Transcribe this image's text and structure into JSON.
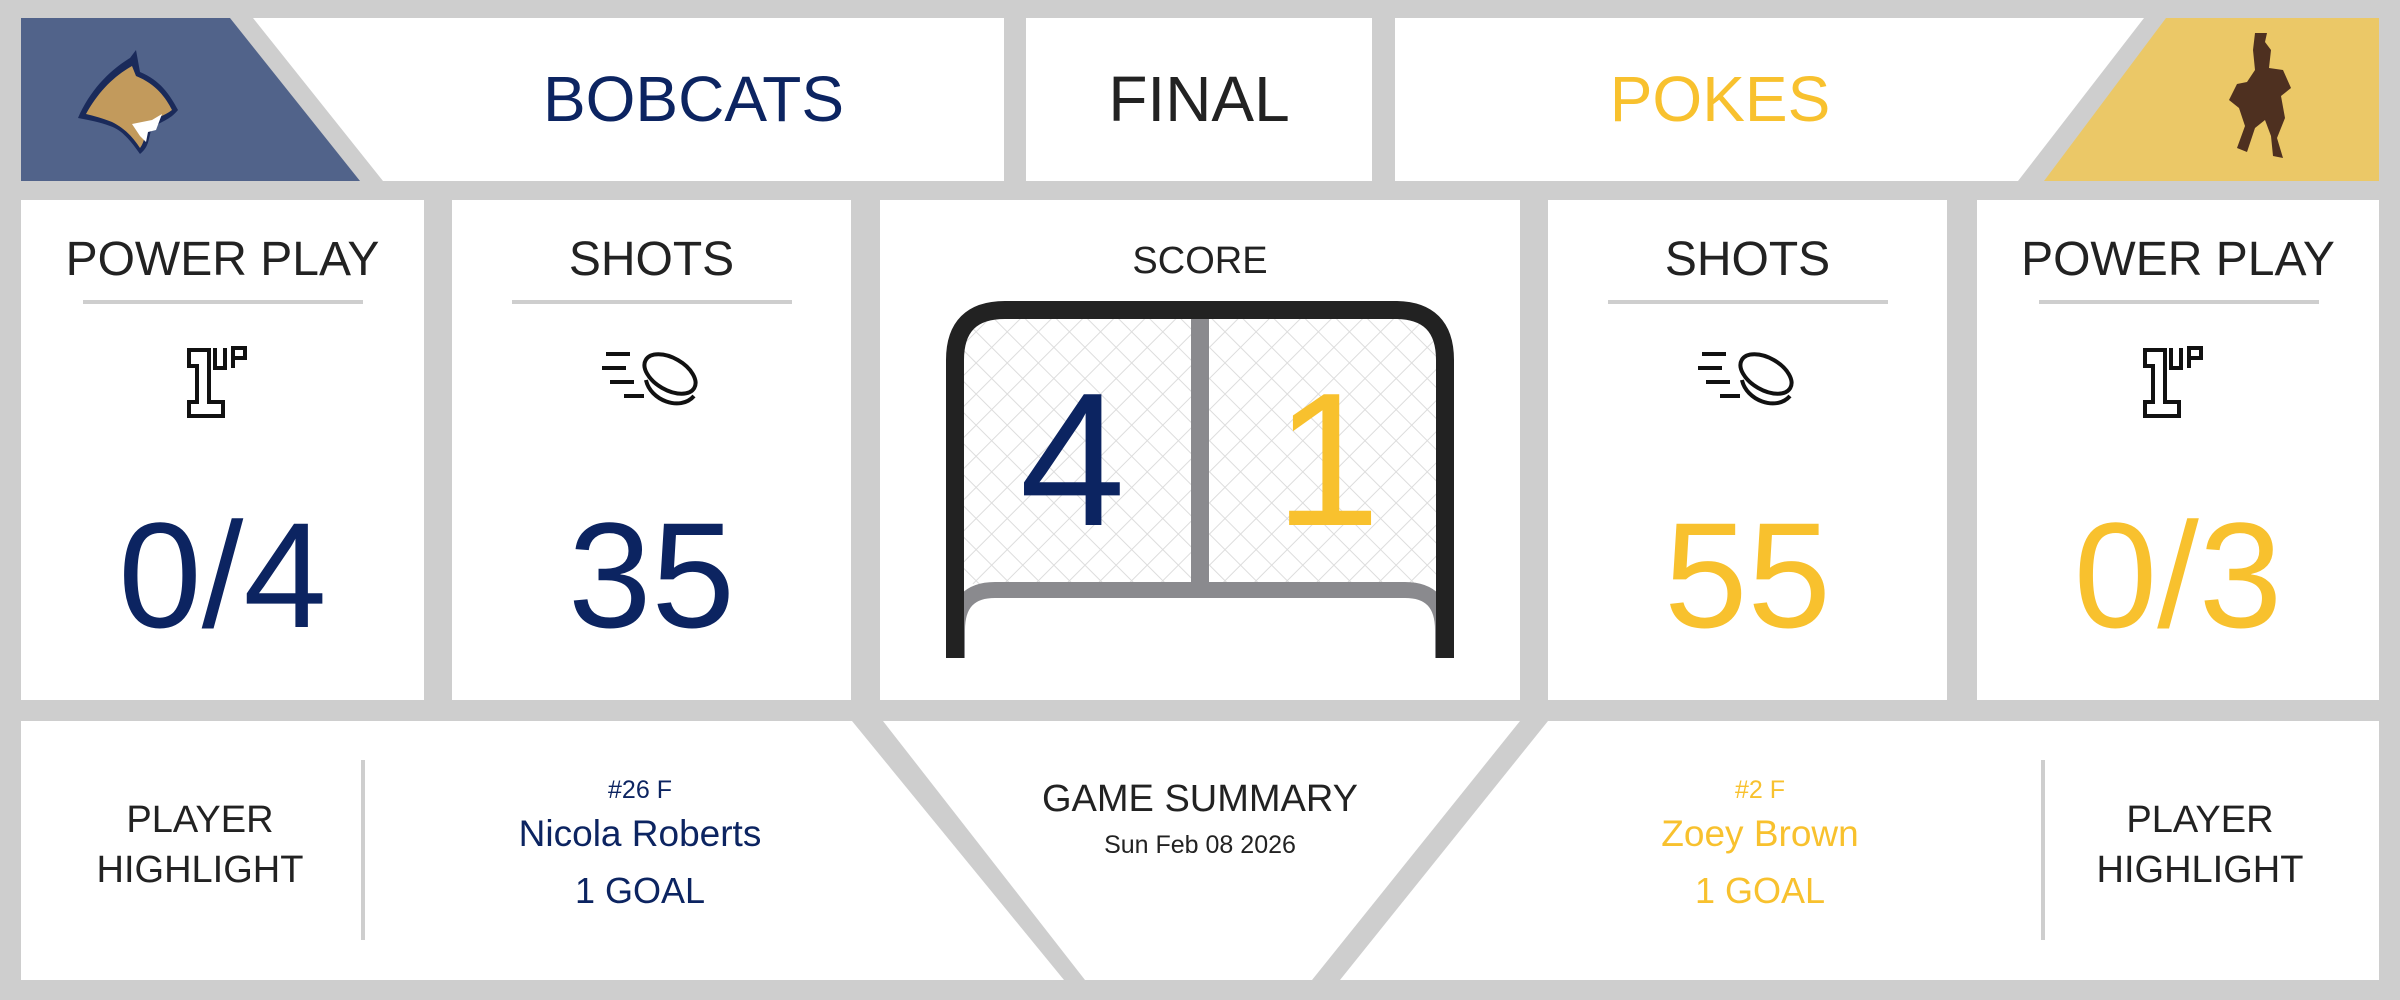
{
  "header": {
    "home_team": "BOBCATS",
    "status": "FINAL",
    "away_team": "POKES"
  },
  "colors": {
    "home": "#0c2461",
    "away": "#f8c12e",
    "home_logo_bg": "#51638a",
    "away_logo_bg": "#ebc867",
    "background": "#cecece"
  },
  "logos": {
    "home": "bobcat-logo",
    "away": "bucking-horse-logo"
  },
  "home": {
    "power_play_label": "POWER PLAY",
    "power_play": "0/4",
    "shots_label": "SHOTS",
    "shots": "35",
    "score": "4",
    "highlight_label_1": "PLAYER",
    "highlight_label_2": "HIGHLIGHT",
    "player_number": "#26 F",
    "player_name": "Nicola Roberts",
    "player_stat": "1 GOAL"
  },
  "away": {
    "power_play_label": "POWER PLAY",
    "power_play": "0/3",
    "shots_label": "SHOTS",
    "shots": "55",
    "score": "1",
    "highlight_label_1": "PLAYER",
    "highlight_label_2": "HIGHLIGHT",
    "player_number": "#2 F",
    "player_name": "Zoey Brown",
    "player_stat": "1 GOAL"
  },
  "score_label": "SCORE",
  "summary": {
    "title": "GAME SUMMARY",
    "date": "Sun Feb 08 2026"
  },
  "icons": {
    "power_play": "1up-icon",
    "shots": "puck-icon",
    "score": "hockey-net-icon"
  }
}
